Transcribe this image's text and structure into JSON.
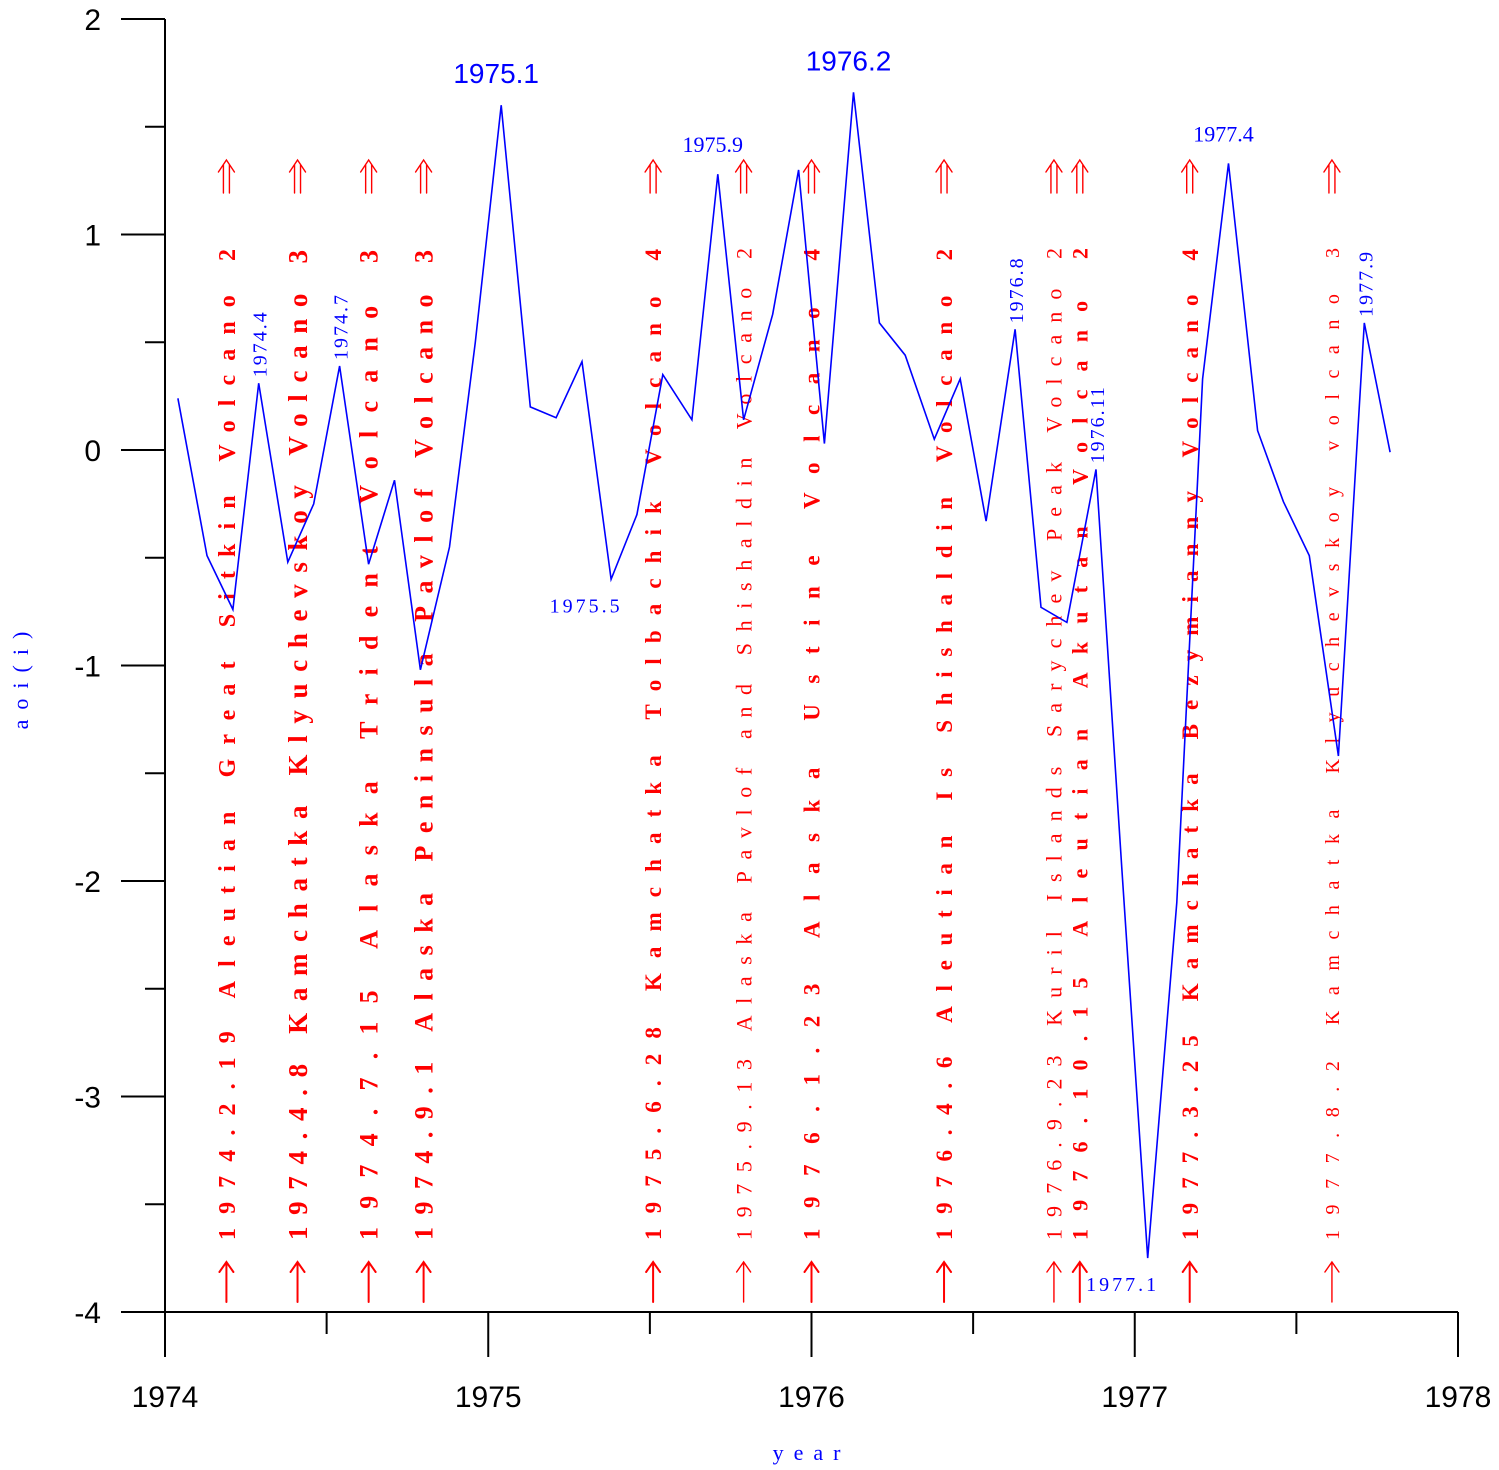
{
  "chart_data": {
    "type": "line",
    "title": "",
    "xlabel": "year",
    "ylabel": "aoi(i)",
    "xlim": [
      1974,
      1978
    ],
    "ylim": [
      -4,
      2
    ],
    "xticks": [
      "1974",
      "1975",
      "1976",
      "1977",
      "1978"
    ],
    "yticks": [
      "2",
      "1",
      "0",
      "-1",
      "-2",
      "-3",
      "-4"
    ],
    "colors": {
      "series": "#0000ff",
      "events": "#ff0000",
      "axes": "#000000"
    },
    "series": [
      {
        "name": "aoi(i)",
        "points": [
          [
            1974.04,
            0.24
          ],
          [
            1974.13,
            -0.49
          ],
          [
            1974.21,
            -0.74
          ],
          [
            1974.29,
            0.31
          ],
          [
            1974.38,
            -0.52
          ],
          [
            1974.46,
            -0.25
          ],
          [
            1974.54,
            0.39
          ],
          [
            1974.63,
            -0.53
          ],
          [
            1974.71,
            -0.14
          ],
          [
            1974.79,
            -1.02
          ],
          [
            1974.88,
            -0.45
          ],
          [
            1974.96,
            0.5
          ],
          [
            1975.04,
            1.6
          ],
          [
            1975.13,
            0.2
          ],
          [
            1975.21,
            0.15
          ],
          [
            1975.29,
            0.41
          ],
          [
            1975.38,
            -0.6
          ],
          [
            1975.46,
            -0.3
          ],
          [
            1975.54,
            0.35
          ],
          [
            1975.63,
            0.14
          ],
          [
            1975.71,
            1.28
          ],
          [
            1975.79,
            0.14
          ],
          [
            1975.88,
            0.63
          ],
          [
            1975.96,
            1.3
          ],
          [
            1976.04,
            0.03
          ],
          [
            1976.13,
            1.66
          ],
          [
            1976.21,
            0.59
          ],
          [
            1976.29,
            0.44
          ],
          [
            1976.38,
            0.05
          ],
          [
            1976.46,
            0.33
          ],
          [
            1976.54,
            -0.33
          ],
          [
            1976.63,
            0.56
          ],
          [
            1976.71,
            -0.73
          ],
          [
            1976.79,
            -0.8
          ],
          [
            1976.88,
            -0.09
          ],
          [
            1976.96,
            -1.94
          ],
          [
            1977.04,
            -3.75
          ],
          [
            1977.13,
            -2.1
          ],
          [
            1977.21,
            0.33
          ],
          [
            1977.29,
            1.33
          ],
          [
            1977.38,
            0.09
          ],
          [
            1977.46,
            -0.24
          ],
          [
            1977.54,
            -0.49
          ],
          [
            1977.63,
            -1.42
          ],
          [
            1977.71,
            0.59
          ],
          [
            1977.79,
            -0.01
          ]
        ]
      }
    ],
    "peak_labels": [
      {
        "text": "1974.4",
        "x": 1974.29,
        "y": 0.31,
        "orient": "vertical",
        "size": "small"
      },
      {
        "text": "1974.7",
        "x": 1974.54,
        "y": 0.39,
        "orient": "vertical",
        "size": "small"
      },
      {
        "text": "1975.1",
        "x": 1975.04,
        "y": 1.6,
        "orient": "horizontal",
        "size": "large"
      },
      {
        "text": "1975.5",
        "x": 1975.38,
        "y": -0.6,
        "orient": "below",
        "size": "small"
      },
      {
        "text": "1975.9",
        "x": 1975.71,
        "y": 1.28,
        "orient": "horizontal",
        "size": "small"
      },
      {
        "text": "1976.2",
        "x": 1976.13,
        "y": 1.66,
        "orient": "horizontal",
        "size": "large"
      },
      {
        "text": "1976.8",
        "x": 1976.63,
        "y": 0.56,
        "orient": "vertical",
        "size": "small"
      },
      {
        "text": "1976.11",
        "x": 1976.88,
        "y": -0.09,
        "orient": "vertical",
        "size": "small"
      },
      {
        "text": "1977.1",
        "x": 1977.04,
        "y": -3.75,
        "orient": "below",
        "size": "small"
      },
      {
        "text": "1977.4",
        "x": 1977.29,
        "y": 1.33,
        "orient": "horizontal",
        "size": "small"
      },
      {
        "text": "1977.9",
        "x": 1977.71,
        "y": 0.59,
        "orient": "vertical",
        "size": "small"
      }
    ],
    "events": [
      {
        "x": 1974.19,
        "text": "1974.2.19 Aleutian Great Sitkin Volcano 2",
        "weight": "bold",
        "size": 24
      },
      {
        "x": 1974.41,
        "text": "1974.4.8 Kamchatka Klyuchevskoy Volcano 3",
        "weight": "bold",
        "size": 27
      },
      {
        "x": 1974.63,
        "text": "1974.7.15 Alaska Trident Volcano 3",
        "weight": "bold",
        "size": 26
      },
      {
        "x": 1974.8,
        "text": "1974.9.1 Alaska Peninsula Pavlof Volcano 3",
        "weight": "bold",
        "size": 26
      },
      {
        "x": 1975.51,
        "text": "1975.6.28 Kamchatka Tolbachik Volcano 4",
        "weight": "bold",
        "size": 23
      },
      {
        "x": 1975.79,
        "text": "1975.9.13 Alaska Pavlof and Shishaldin Volcano 2",
        "weight": "normal",
        "size": 22
      },
      {
        "x": 1976.0,
        "text": "1976.1.23 Alaska Ustine Volcano 4",
        "weight": "bold",
        "size": 23
      },
      {
        "x": 1976.41,
        "text": "1976.4.6 Aleutian Is Shishaldin Volcano 2",
        "weight": "bold",
        "size": 23
      },
      {
        "x": 1976.75,
        "text": "1976.9.23 Kuril Islands Sarychev Peak Volcano 2",
        "weight": "normal",
        "size": 22
      },
      {
        "x": 1976.83,
        "text": "1976.10.15 Aleutian Akutan Volcano 2",
        "weight": "bold",
        "size": 22
      },
      {
        "x": 1977.17,
        "text": "1977.3.25 Kamchatka Bezymianny Volcano 4",
        "weight": "bold",
        "size": 23
      },
      {
        "x": 1977.61,
        "text": "1977.8.2 Kamchatka Klyuchevskoy volcano 3",
        "weight": "normal",
        "size": 20
      }
    ]
  }
}
